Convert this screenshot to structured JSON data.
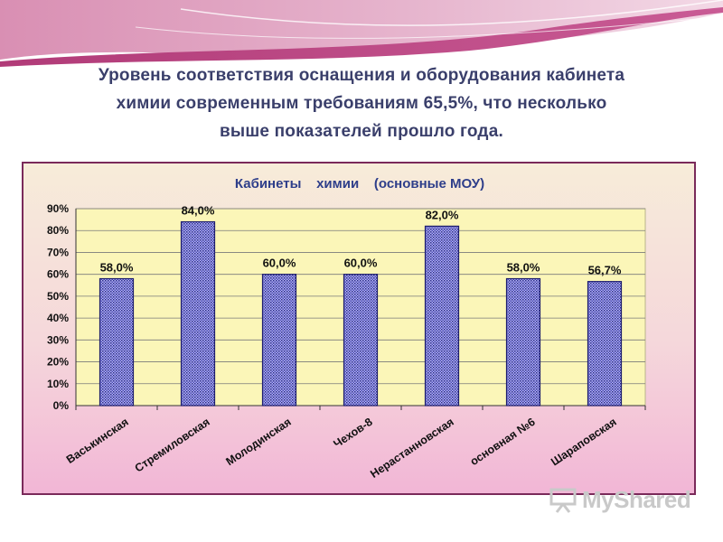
{
  "slide": {
    "title_lines": [
      "Уровень соответствия оснащения и оборудования кабинета",
      "химии современным требованиям 65,5%, что несколько",
      "выше показателей прошло года."
    ]
  },
  "watermark": {
    "text": "MyShared",
    "icon": "presentation-board-icon"
  },
  "colors": {
    "bar_fill": "#9a9ae6",
    "bar_hatch": "#2a2a8c",
    "plot_bg": "#fbf6b8",
    "title": "#3a3f6b",
    "chart_title": "#2e3e8a",
    "frame": "#7a2a5a"
  },
  "chart_data": {
    "type": "bar",
    "title": "Кабинеты    химии    (основные МОУ)",
    "categories": [
      "Васькинская",
      "Стремиловская",
      "Молодинская",
      "Чехов-8",
      "Нерастанновская",
      "основная №6",
      "Шараповская"
    ],
    "values": [
      58.0,
      84.0,
      60.0,
      60.0,
      82.0,
      58.0,
      56.7
    ],
    "data_labels": [
      "58,0%",
      "84,0%",
      "60,0%",
      "60,0%",
      "82,0%",
      "58,0%",
      "56,7%"
    ],
    "ylim": [
      0,
      90
    ],
    "yticks": [
      0,
      10,
      20,
      30,
      40,
      50,
      60,
      70,
      80,
      90
    ],
    "ytick_labels": [
      "0%",
      "10%",
      "20%",
      "30%",
      "40%",
      "50%",
      "60%",
      "70%",
      "80%",
      "90%"
    ],
    "grid": true,
    "legend": "none",
    "xlabel": "",
    "ylabel": ""
  }
}
